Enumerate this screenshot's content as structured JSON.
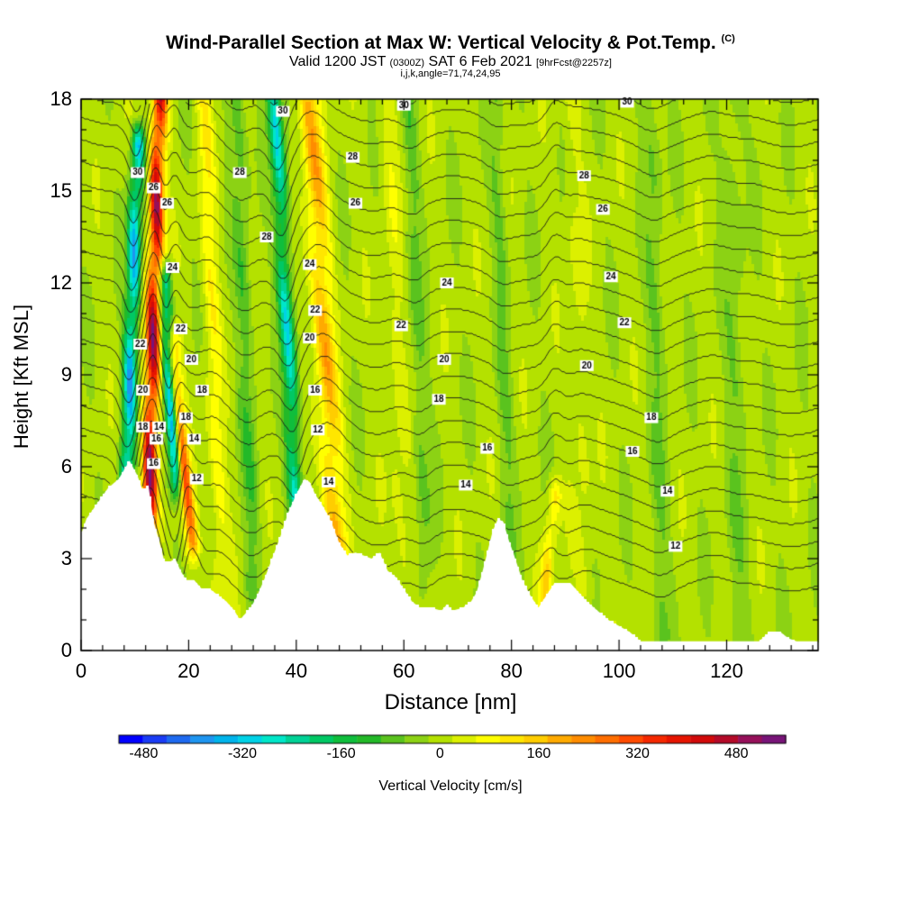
{
  "title": {
    "main": "Wind-Parallel Section at Max W: Vertical Velocity & Pot.Temp.",
    "copyright": "(C)",
    "valid_prefix": "Valid 1200 JST",
    "valid_utc": "(0300Z)",
    "valid_date": "SAT 6 Feb 2021",
    "forecast": "[9hrFcst@2257z]",
    "params": "i,j,k,angle=71,74,24,95"
  },
  "chart_data": {
    "type": "heatmap",
    "xlabel": "Distance [nm]",
    "ylabel": "Height [Kft MSL]",
    "xlim": [
      0,
      137
    ],
    "ylim": [
      0,
      18
    ],
    "x_ticks": [
      "0",
      "20",
      "40",
      "60",
      "80",
      "100",
      "120"
    ],
    "y_ticks": [
      "0",
      "3",
      "6",
      "9",
      "12",
      "15",
      "18"
    ],
    "colorbar": {
      "label": "Vertical Velocity [cm/s]",
      "ticks": [
        "-480",
        "-320",
        "-160",
        "0",
        "160",
        "320",
        "480"
      ],
      "range": [
        -520,
        560
      ],
      "step": 40,
      "colors": [
        "#0000ff",
        "#1a3cf5",
        "#1e6af0",
        "#1e95f0",
        "#00b4eb",
        "#00d2e6",
        "#00e6c8",
        "#00d296",
        "#00c864",
        "#0fbe3c",
        "#23b928",
        "#5ac31e",
        "#8cd214",
        "#b4e100",
        "#dcf000",
        "#ffff00",
        "#ffe600",
        "#ffcd00",
        "#ffaa00",
        "#ff8c00",
        "#ff6e00",
        "#ff4b00",
        "#f52800",
        "#e61400",
        "#d20a0a",
        "#b40a28",
        "#96105a",
        "#781478"
      ]
    },
    "terrain_nm": [
      [
        0,
        3.8
      ],
      [
        1,
        4.3
      ],
      [
        3,
        4.8
      ],
      [
        5,
        5.3
      ],
      [
        7,
        5.6
      ],
      [
        9,
        6.2
      ],
      [
        10.5,
        5.7
      ],
      [
        11.5,
        5.2
      ],
      [
        12.5,
        5.4
      ],
      [
        13.5,
        4.2
      ],
      [
        14.5,
        3.6
      ],
      [
        15.5,
        2.9
      ],
      [
        16.5,
        2.9
      ],
      [
        17.5,
        3.0
      ],
      [
        18.5,
        2.6
      ],
      [
        19.5,
        2.3
      ],
      [
        21,
        2.3
      ],
      [
        22.5,
        2.0
      ],
      [
        24,
        2.0
      ],
      [
        25.5,
        1.8
      ],
      [
        27,
        1.6
      ],
      [
        28.5,
        1.3
      ],
      [
        29.5,
        1.0
      ],
      [
        30.5,
        1.2
      ],
      [
        31.5,
        1.4
      ],
      [
        32.5,
        1.7
      ],
      [
        34,
        2.3
      ],
      [
        35.5,
        3.0
      ],
      [
        37,
        3.7
      ],
      [
        38.5,
        4.5
      ],
      [
        40,
        5.1
      ],
      [
        41.5,
        5.6
      ],
      [
        42.5,
        5.5
      ],
      [
        43.5,
        5.1
      ],
      [
        45,
        4.7
      ],
      [
        46.5,
        4.2
      ],
      [
        48,
        3.5
      ],
      [
        49.5,
        3.1
      ],
      [
        51,
        3.2
      ],
      [
        52.5,
        3.1
      ],
      [
        54,
        3.0
      ],
      [
        55.5,
        3.2
      ],
      [
        57,
        2.6
      ],
      [
        58.5,
        2.4
      ],
      [
        60,
        2.0
      ],
      [
        61.5,
        1.6
      ],
      [
        63,
        1.4
      ],
      [
        65,
        1.4
      ],
      [
        67,
        1.3
      ],
      [
        68,
        1.5
      ],
      [
        69,
        1.3
      ],
      [
        71,
        1.4
      ],
      [
        72.5,
        1.6
      ],
      [
        73.5,
        1.9
      ],
      [
        74.5,
        2.5
      ],
      [
        75.5,
        3.2
      ],
      [
        76.5,
        3.9
      ],
      [
        77.5,
        4.3
      ],
      [
        78.5,
        4.2
      ],
      [
        79.5,
        3.6
      ],
      [
        80.5,
        3.1
      ],
      [
        82,
        2.3
      ],
      [
        83.5,
        1.8
      ],
      [
        85,
        1.4
      ],
      [
        86.5,
        1.8
      ],
      [
        88,
        2.2
      ],
      [
        89.5,
        2.2
      ],
      [
        91,
        2.2
      ],
      [
        92.5,
        1.9
      ],
      [
        94,
        1.6
      ],
      [
        96,
        1.3
      ],
      [
        98,
        1.0
      ],
      [
        100,
        0.8
      ],
      [
        102,
        0.6
      ],
      [
        104,
        0.3
      ],
      [
        106,
        0.3
      ],
      [
        110,
        0.3
      ],
      [
        114,
        0.3
      ],
      [
        118,
        0.3
      ],
      [
        122,
        0.3
      ],
      [
        126,
        0.3
      ],
      [
        128,
        0.6
      ],
      [
        130,
        0.6
      ],
      [
        131.5,
        0.4
      ],
      [
        133,
        0.3
      ],
      [
        137,
        0.3
      ]
    ],
    "w_features": [
      {
        "name": "updraft-main",
        "x_bottom": 12.5,
        "x_top": 14.5,
        "y_bottom": 4.0,
        "y_top": 18.0,
        "w_peak": 560,
        "halfwidth": 1.4
      },
      {
        "name": "downdraft-main",
        "x_bottom": 8.5,
        "x_top": 10.5,
        "y_bottom": 5.5,
        "y_top": 16.5,
        "w_peak": -400,
        "halfwidth": 1.3
      },
      {
        "name": "downdraft-2",
        "x_bottom": 17.5,
        "x_top": 15.5,
        "y_bottom": 5.5,
        "y_top": 12.0,
        "w_peak": -380,
        "halfwidth": 1.1
      },
      {
        "name": "updraft-2",
        "x_bottom": 20.5,
        "x_top": 17.0,
        "y_bottom": 3.5,
        "y_top": 10.0,
        "w_peak": 320,
        "halfwidth": 1.2
      },
      {
        "name": "downdraft-3",
        "x_bottom": 40.0,
        "x_top": 36.0,
        "y_bottom": 5.0,
        "y_top": 18.0,
        "w_peak": -320,
        "halfwidth": 1.4
      },
      {
        "name": "updraft-3",
        "x_bottom": 47.5,
        "x_top": 42.5,
        "y_bottom": 3.0,
        "y_top": 18.0,
        "w_peak": 220,
        "halfwidth": 2.2
      },
      {
        "name": "updraft-4",
        "x_bottom": 26.0,
        "x_top": 23.0,
        "y_bottom": 2.0,
        "y_top": 18.0,
        "w_peak": 110,
        "halfwidth": 1.6
      },
      {
        "name": "updraft-5",
        "x_bottom": 86.0,
        "x_top": 88.0,
        "y_bottom": 1.5,
        "y_top": 5.0,
        "w_peak": 160,
        "halfwidth": 1.2
      },
      {
        "name": "updraft-6",
        "x_bottom": 60.0,
        "x_top": 57.0,
        "y_bottom": 2.0,
        "y_top": 18.0,
        "w_peak": 60,
        "halfwidth": 1.8
      },
      {
        "name": "updraft-7",
        "x_bottom": 94.0,
        "x_top": 91.0,
        "y_bottom": 2.0,
        "y_top": 18.0,
        "w_peak": 50,
        "halfwidth": 1.6
      },
      {
        "name": "downdraft-4",
        "x_bottom": 32.0,
        "x_top": 29.0,
        "y_bottom": 2.0,
        "y_top": 18.0,
        "w_peak": -100,
        "halfwidth": 1.6
      },
      {
        "name": "downdraft-5",
        "x_bottom": 64.0,
        "x_top": 61.0,
        "y_bottom": 2.0,
        "y_top": 18.0,
        "w_peak": -80,
        "halfwidth": 1.5
      },
      {
        "name": "downdraft-6",
        "x_bottom": 80.0,
        "x_top": 77.0,
        "y_bottom": 2.0,
        "y_top": 18.0,
        "w_peak": -70,
        "halfwidth": 1.5
      },
      {
        "name": "downdraft-7",
        "x_bottom": 108.0,
        "x_top": 106.0,
        "y_bottom": 0.5,
        "y_top": 18.0,
        "w_peak": -70,
        "halfwidth": 1.8
      },
      {
        "name": "downdraft-8",
        "x_bottom": 122.0,
        "x_top": 121.0,
        "y_bottom": 0.5,
        "y_top": 18.0,
        "w_peak": -60,
        "halfwidth": 2.0
      }
    ],
    "theta_contours": {
      "labeled_levels": [
        12,
        14,
        16,
        18,
        20,
        22,
        24,
        26,
        28,
        30
      ],
      "labels_nm_kft": [
        {
          "text": "30",
          "x": 10.5,
          "y": 15.6
        },
        {
          "text": "26",
          "x": 16.0,
          "y": 14.6
        },
        {
          "text": "26",
          "x": 13.5,
          "y": 15.1
        },
        {
          "text": "24",
          "x": 17.0,
          "y": 12.5
        },
        {
          "text": "22",
          "x": 11.0,
          "y": 10.0
        },
        {
          "text": "22",
          "x": 18.5,
          "y": 10.5
        },
        {
          "text": "20",
          "x": 11.5,
          "y": 8.5
        },
        {
          "text": "20",
          "x": 20.5,
          "y": 9.5
        },
        {
          "text": "18",
          "x": 11.5,
          "y": 7.3
        },
        {
          "text": "18",
          "x": 22.5,
          "y": 8.5
        },
        {
          "text": "16",
          "x": 14.0,
          "y": 6.9
        },
        {
          "text": "18",
          "x": 19.5,
          "y": 7.6
        },
        {
          "text": "14",
          "x": 14.5,
          "y": 7.3
        },
        {
          "text": "14",
          "x": 21.0,
          "y": 6.9
        },
        {
          "text": "16",
          "x": 13.5,
          "y": 6.1
        },
        {
          "text": "12",
          "x": 21.5,
          "y": 5.6
        },
        {
          "text": "30",
          "x": 37.5,
          "y": 17.6
        },
        {
          "text": "28",
          "x": 29.5,
          "y": 15.6
        },
        {
          "text": "28",
          "x": 50.5,
          "y": 16.1
        },
        {
          "text": "26",
          "x": 51.0,
          "y": 14.6
        },
        {
          "text": "28",
          "x": 34.5,
          "y": 13.5
        },
        {
          "text": "24",
          "x": 42.5,
          "y": 12.6
        },
        {
          "text": "22",
          "x": 43.5,
          "y": 11.1
        },
        {
          "text": "20",
          "x": 42.5,
          "y": 10.2
        },
        {
          "text": "16",
          "x": 43.5,
          "y": 8.5
        },
        {
          "text": "12",
          "x": 44.0,
          "y": 7.2
        },
        {
          "text": "14",
          "x": 46.0,
          "y": 5.5
        },
        {
          "text": "30",
          "x": 60.0,
          "y": 17.8
        },
        {
          "text": "22",
          "x": 59.5,
          "y": 10.6
        },
        {
          "text": "24",
          "x": 68.0,
          "y": 12.0
        },
        {
          "text": "20",
          "x": 67.5,
          "y": 9.5
        },
        {
          "text": "18",
          "x": 66.5,
          "y": 8.2
        },
        {
          "text": "16",
          "x": 75.5,
          "y": 6.6
        },
        {
          "text": "14",
          "x": 71.5,
          "y": 5.4
        },
        {
          "text": "30",
          "x": 101.5,
          "y": 17.9
        },
        {
          "text": "28",
          "x": 93.5,
          "y": 15.5
        },
        {
          "text": "26",
          "x": 97.0,
          "y": 14.4
        },
        {
          "text": "24",
          "x": 98.5,
          "y": 12.2
        },
        {
          "text": "22",
          "x": 101.0,
          "y": 10.7
        },
        {
          "text": "20",
          "x": 94.0,
          "y": 9.3
        },
        {
          "text": "18",
          "x": 106.0,
          "y": 7.6
        },
        {
          "text": "16",
          "x": 102.5,
          "y": 6.5
        },
        {
          "text": "14",
          "x": 109.0,
          "y": 5.2
        },
        {
          "text": "12",
          "x": 110.5,
          "y": 3.4
        }
      ]
    }
  }
}
